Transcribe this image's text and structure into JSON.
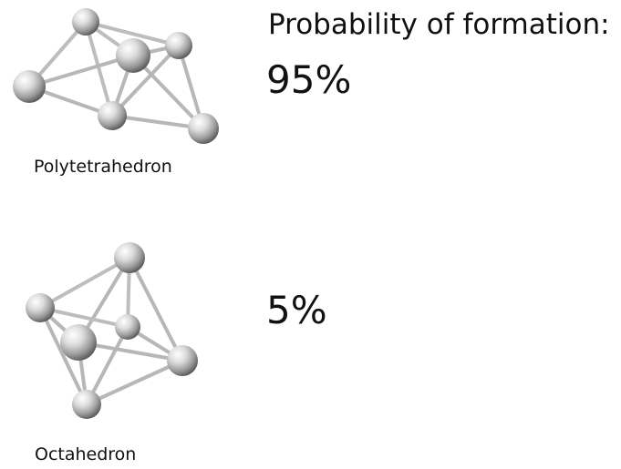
{
  "heading": "Probability of formation:",
  "structures": [
    {
      "name": "Polytetrahedron",
      "probability": "95%"
    },
    {
      "name": "Octahedron",
      "probability": "5%"
    }
  ]
}
